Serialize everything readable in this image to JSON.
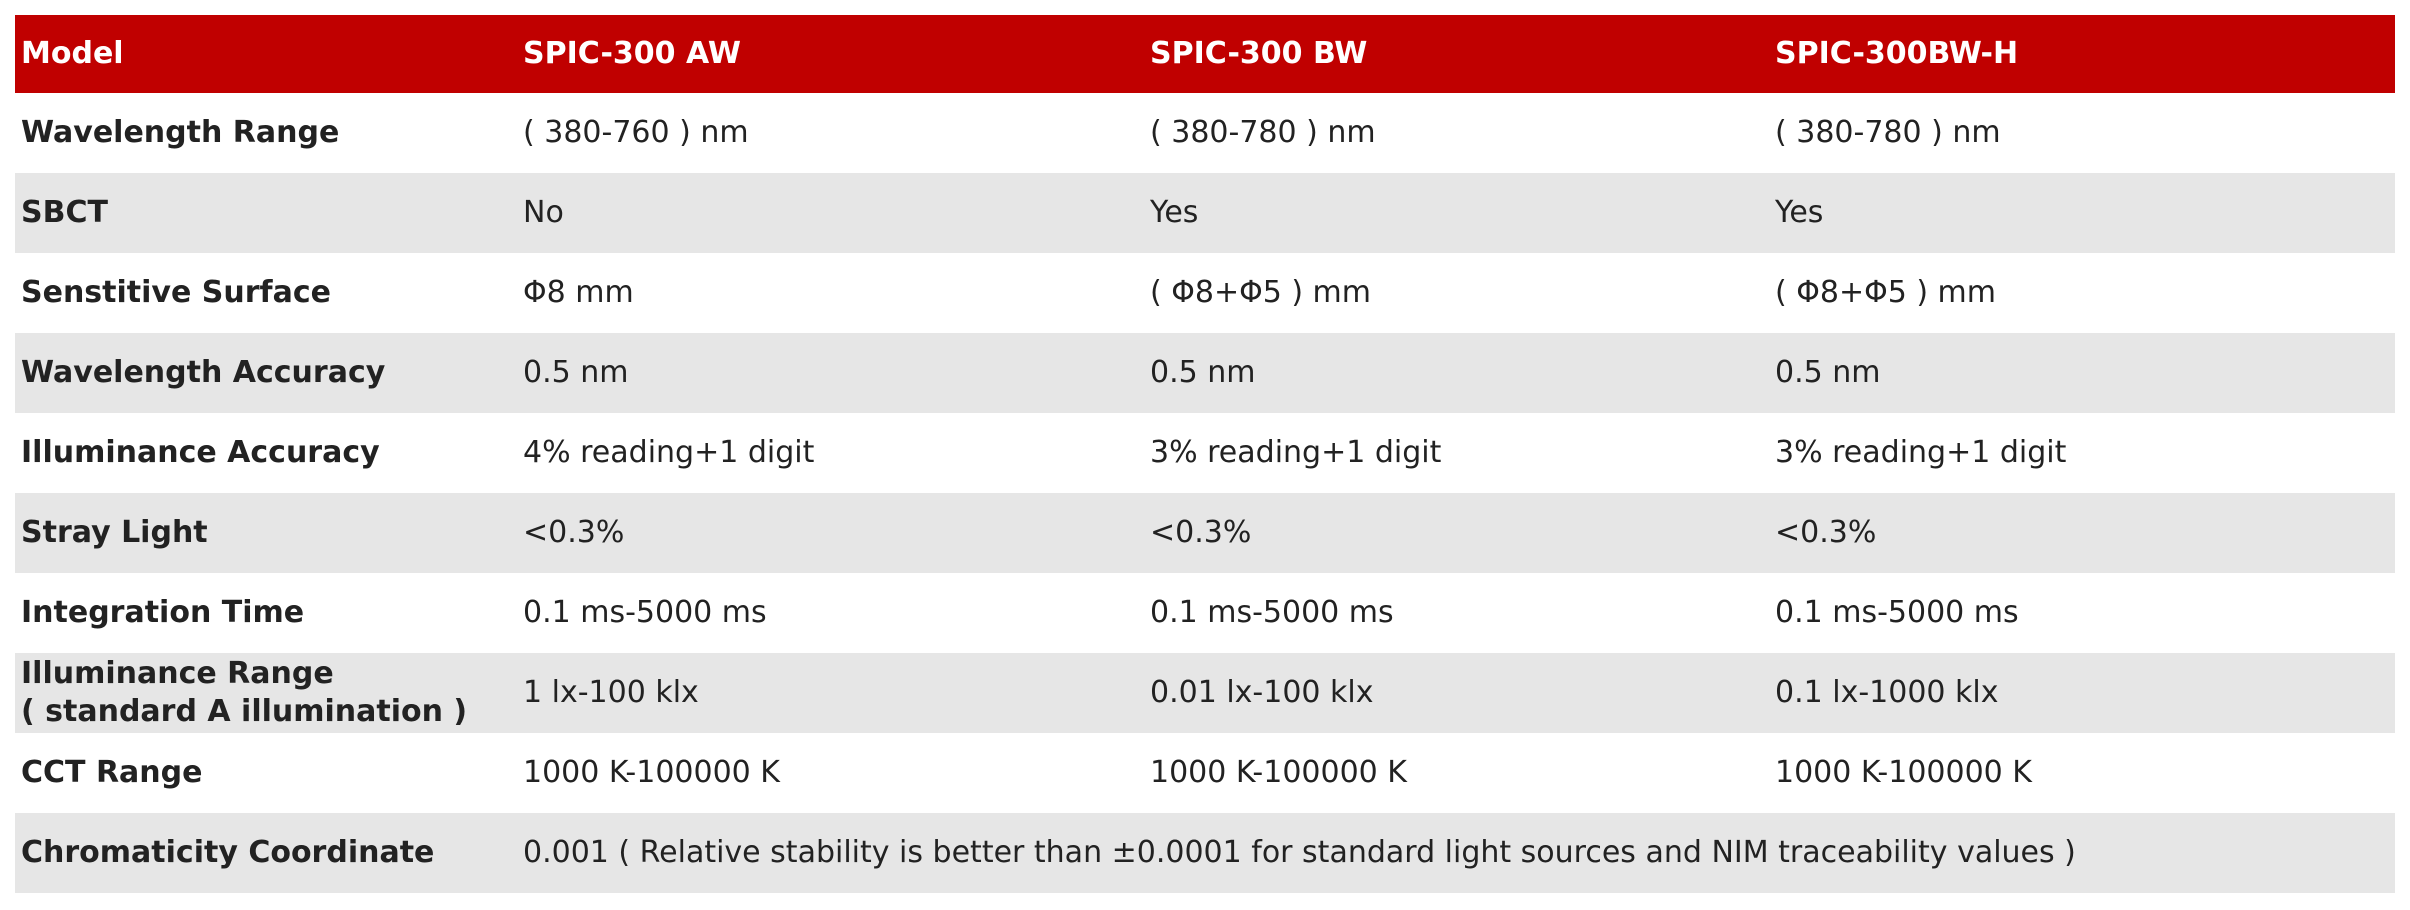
{
  "table": {
    "header": [
      "Model",
      "SPIC-300 AW",
      "SPIC-300 BW",
      "SPIC-300BW-H"
    ],
    "rows": [
      [
        "Wavelength Range",
        "( 380-760 ) nm",
        "( 380-780 ) nm",
        "( 380-780 ) nm"
      ],
      [
        "SBCT",
        "No",
        "Yes",
        "Yes"
      ],
      [
        "Senstitive Surface",
        "Φ8 mm",
        "( Φ8+Φ5 ) mm",
        "( Φ8+Φ5 ) mm"
      ],
      [
        "Wavelength Accuracy",
        "0.5 nm",
        "0.5 nm",
        "0.5 nm"
      ],
      [
        "Illuminance Accuracy",
        "4% reading+1 digit",
        "3% reading+1 digit",
        "3% reading+1 digit"
      ],
      [
        "Stray Light",
        "<0.3%",
        "<0.3%",
        "<0.3%"
      ],
      [
        "Integration Time",
        "0.1 ms-5000 ms",
        "0.1 ms-5000 ms",
        "0.1 ms-5000 ms"
      ],
      [
        "Illuminance Range\n( standard A illumination )",
        "1 lx-100 klx",
        "0.01 lx-100 klx",
        "0.1 lx-1000 klx"
      ],
      [
        "CCT Range",
        "1000 K-100000 K",
        "1000 K-100000 K",
        "1000 K-100000 K"
      ],
      [
        "Chromaticity Coordinate",
        "0.001 ( Relative stability is better than ±0.0001 for standard light sources and NIM traceability values )"
      ]
    ]
  }
}
